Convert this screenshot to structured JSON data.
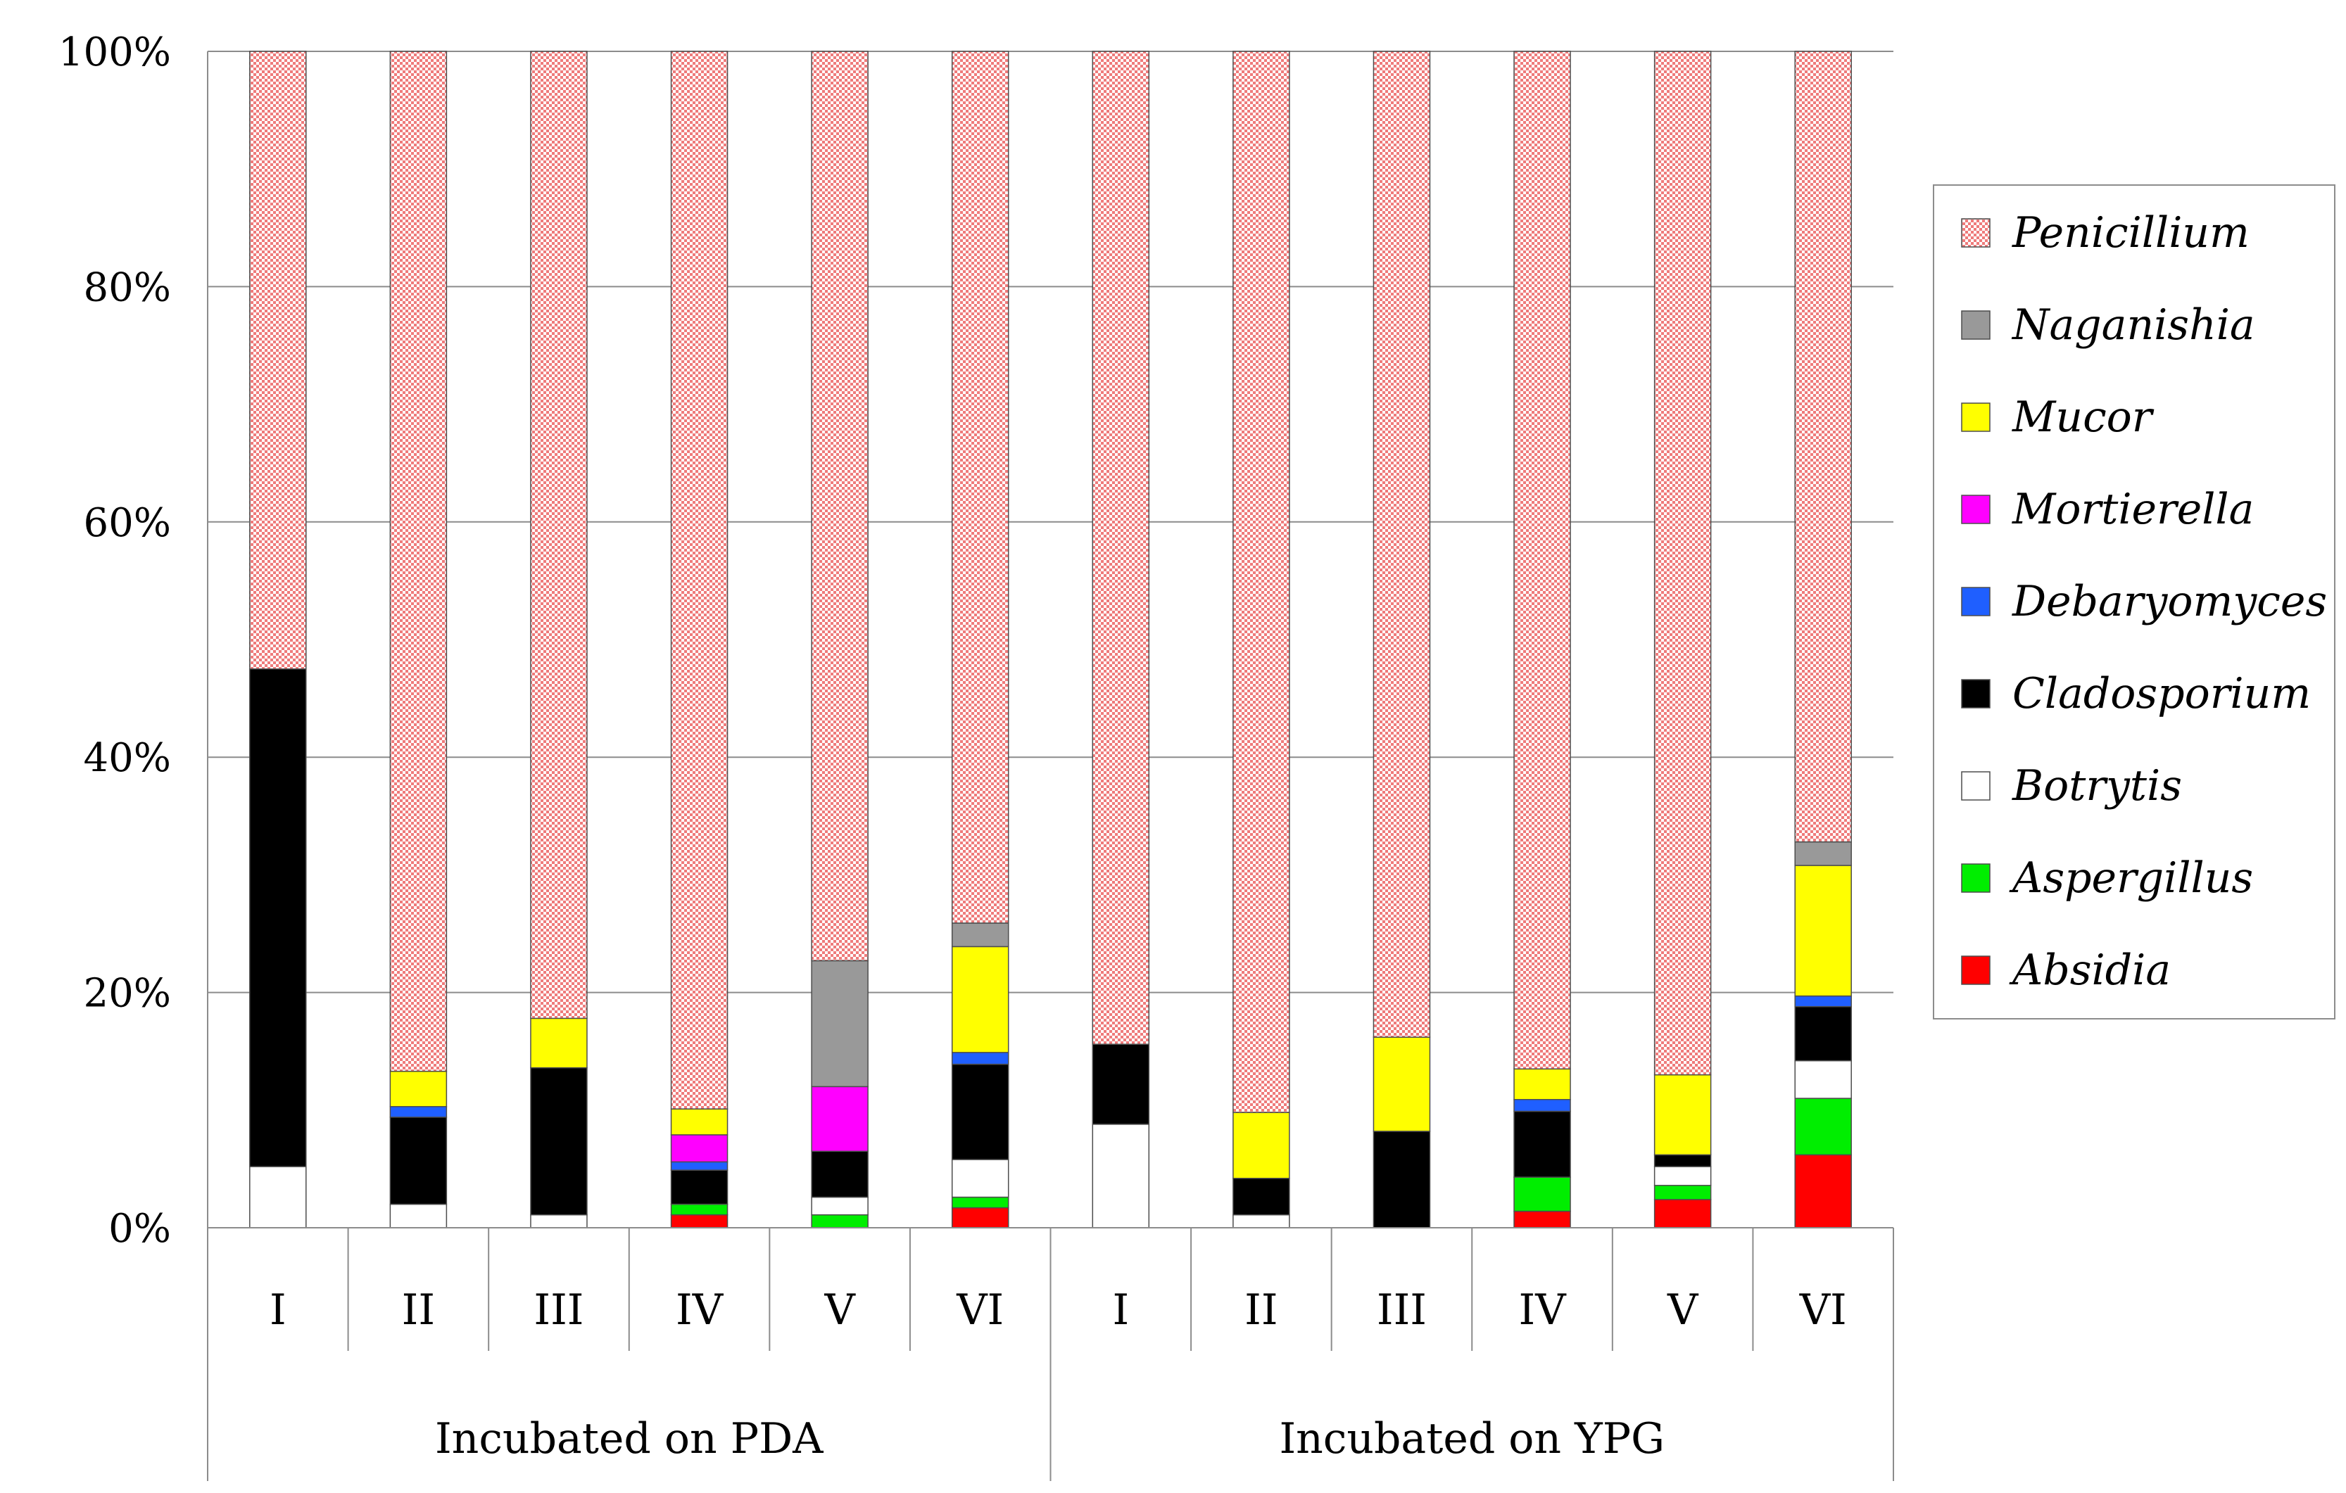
{
  "chart_data": {
    "type": "bar",
    "stacked": true,
    "percent": true,
    "title": "",
    "xlabel": "",
    "ylabel": "",
    "ylim": [
      0,
      100
    ],
    "yticks": [
      "0%",
      "20%",
      "40%",
      "60%",
      "80%",
      "100%"
    ],
    "categories": [
      "I",
      "II",
      "III",
      "IV",
      "V",
      "VI",
      "I",
      "II",
      "III",
      "IV",
      "V",
      "VI"
    ],
    "groups": [
      {
        "label": "Incubated on PDA",
        "start": 0,
        "end": 6
      },
      {
        "label": "Incubated on YPG",
        "start": 6,
        "end": 12
      }
    ],
    "legend_position": "right",
    "series": [
      {
        "name": "Absidia",
        "color": "#ff0000",
        "pattern": "solid",
        "values": [
          0,
          0,
          0,
          1.1,
          0,
          1.7,
          0,
          0,
          0,
          1.4,
          2.4,
          6.2
        ]
      },
      {
        "name": "Aspergillus",
        "color": "#00ee00",
        "pattern": "solid",
        "values": [
          0,
          0,
          0,
          0.9,
          1.1,
          0.9,
          0,
          0,
          0,
          2.9,
          1.2,
          4.8
        ]
      },
      {
        "name": "Botrytis",
        "color": "#ffffff",
        "pattern": "solid",
        "values": [
          5.2,
          2.0,
          1.1,
          0,
          1.5,
          3.2,
          8.8,
          1.1,
          0,
          0,
          1.6,
          3.2
        ]
      },
      {
        "name": "Cladosporium",
        "color": "#000000",
        "pattern": "solid",
        "values": [
          42.3,
          7.4,
          12.5,
          2.9,
          3.9,
          8.1,
          6.8,
          3.1,
          8.2,
          5.6,
          1.0,
          4.6
        ]
      },
      {
        "name": "Debaryomyces",
        "color": "#1f5fff",
        "pattern": "solid",
        "values": [
          0,
          0.9,
          0,
          0.7,
          0,
          1.0,
          0,
          0,
          0,
          1.0,
          0,
          0.9
        ]
      },
      {
        "name": "Mortierella",
        "color": "#ff00ff",
        "pattern": "solid",
        "values": [
          0,
          0,
          0,
          2.3,
          5.5,
          0,
          0,
          0,
          0,
          0,
          0,
          0
        ]
      },
      {
        "name": "Mucor",
        "color": "#ffff00",
        "pattern": "solid",
        "values": [
          0,
          3.0,
          4.2,
          2.2,
          0,
          9.0,
          0,
          5.6,
          8.0,
          2.6,
          6.8,
          11.1
        ]
      },
      {
        "name": "Naganishia",
        "color": "#999999",
        "pattern": "solid",
        "values": [
          0,
          0,
          0,
          0,
          10.7,
          2.0,
          0,
          0,
          0,
          0,
          0,
          2.0
        ]
      },
      {
        "name": "Penicillium",
        "color": "#f4a6a6",
        "pattern": "checker",
        "values": [
          52.5,
          86.7,
          82.2,
          89.9,
          77.3,
          74.1,
          84.4,
          90.2,
          83.8,
          86.5,
          87.0,
          67.2
        ]
      }
    ]
  }
}
